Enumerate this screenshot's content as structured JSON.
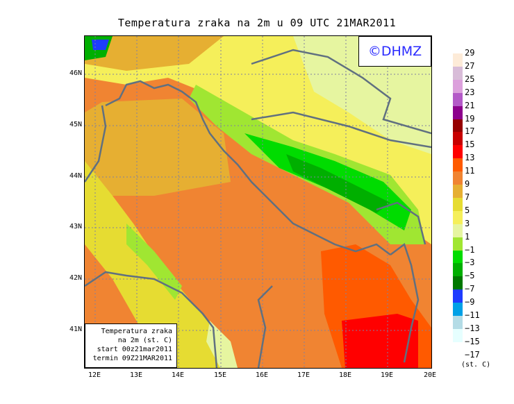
{
  "title": "Temperatura zraka na 2m u 09 UTC 21MAR2011",
  "logo": "©DHMZ",
  "infobox": [
    "Temperatura zraka",
    "na 2m (st. C)",
    "start 00z21mar2011",
    "termin 09Z21MAR2011"
  ],
  "x_ticks": [
    "12E",
    "13E",
    "14E",
    "15E",
    "16E",
    "17E",
    "18E",
    "19E",
    "20E"
  ],
  "y_ticks": [
    "46N",
    "45N",
    "44N",
    "43N",
    "42N",
    "41N"
  ],
  "legend": {
    "labels": [
      "29",
      "27",
      "25",
      "23",
      "21",
      "19",
      "17",
      "15",
      "13",
      "11",
      "9",
      "7",
      "5",
      "3",
      "1",
      "−1",
      "−3",
      "−5",
      "−7",
      "−9",
      "−11",
      "−13",
      "−15",
      "−17"
    ],
    "colors": [
      "#fdebd8",
      "#d8bcd8",
      "#dca0dc",
      "#b45ac8",
      "#8c008c",
      "#960000",
      "#c80000",
      "#ff0000",
      "#ff5a00",
      "#f08432",
      "#e6af32",
      "#e6dc32",
      "#f5ef5a",
      "#e6f5a0",
      "#a0e632",
      "#00dc00",
      "#00af00",
      "#007800",
      "#1e3cff",
      "#00a0e6",
      "#b4dce6",
      "#e6ffff",
      "#ffffff"
    ],
    "unit": "(st. C)"
  }
}
